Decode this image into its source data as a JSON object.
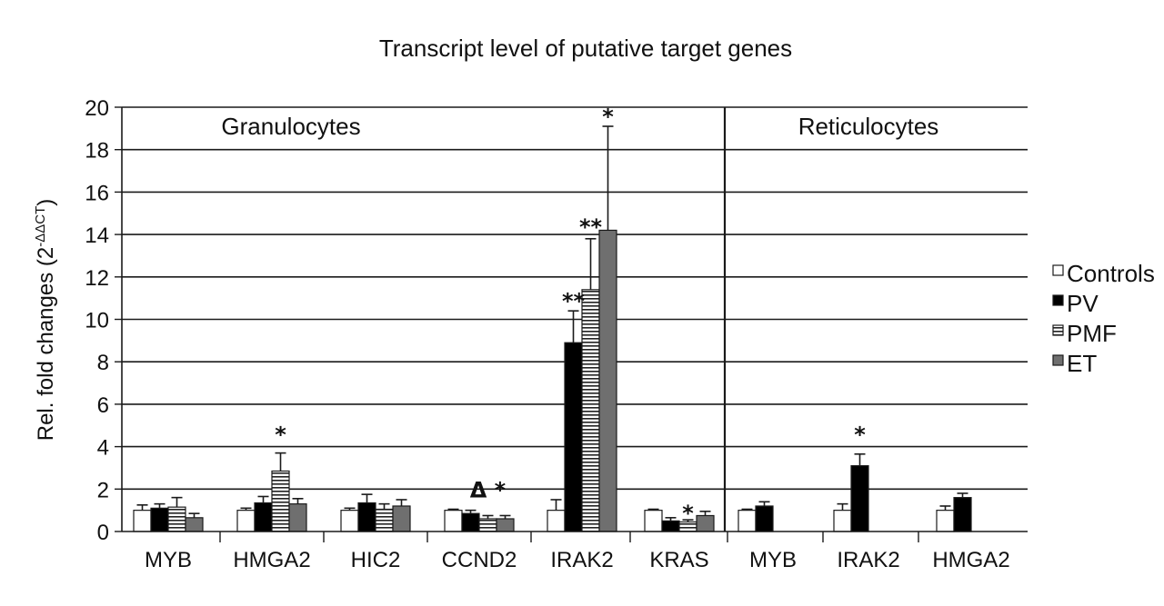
{
  "chart_data": {
    "type": "bar",
    "title": "Transcript level of putative target genes",
    "ylabel": "Rel. fold changes (2",
    "ylabel_sup": "-ΔΔCT",
    "ylabel_close": ")",
    "ylim": [
      0,
      20
    ],
    "yticks": [
      0,
      2,
      4,
      6,
      8,
      10,
      12,
      14,
      16,
      18,
      20
    ],
    "grid": true,
    "legend_position": "right",
    "panels": [
      "Granulocytes",
      "Reticulocytes"
    ],
    "categories": [
      "MYB",
      "HMGA2",
      "HIC2",
      "CCND2",
      "IRAK2",
      "KRAS",
      "MYB",
      "IRAK2",
      "HMGA2"
    ],
    "category_panel": [
      0,
      0,
      0,
      0,
      0,
      0,
      1,
      1,
      1
    ],
    "series": [
      {
        "name": "Controls",
        "fill": "#ffffff",
        "pattern": "solid",
        "values": [
          1.0,
          1.0,
          1.0,
          1.0,
          1.0,
          1.0,
          1.0,
          1.0,
          1.0
        ],
        "errors": [
          0.25,
          0.1,
          0.1,
          0.05,
          0.5,
          0.05,
          0.05,
          0.3,
          0.2
        ]
      },
      {
        "name": "PV",
        "fill": "#000000",
        "pattern": "solid",
        "values": [
          1.1,
          1.35,
          1.35,
          0.85,
          8.9,
          0.5,
          1.2,
          3.1,
          1.6
        ],
        "errors": [
          0.2,
          0.3,
          0.4,
          0.15,
          1.5,
          0.15,
          0.2,
          0.55,
          0.2
        ]
      },
      {
        "name": "PMF",
        "fill": "#ffffff",
        "pattern": "hlines",
        "values": [
          1.15,
          2.85,
          1.05,
          0.6,
          11.4,
          0.45,
          null,
          null,
          null
        ],
        "errors": [
          0.45,
          0.85,
          0.25,
          0.15,
          2.4,
          0.1,
          null,
          null,
          null
        ]
      },
      {
        "name": "ET",
        "fill": "#6f6f6f",
        "pattern": "solid",
        "values": [
          0.65,
          1.3,
          1.2,
          0.6,
          14.2,
          0.75,
          null,
          null,
          null
        ],
        "errors": [
          0.2,
          0.25,
          0.3,
          0.15,
          4.9,
          0.2,
          null,
          null,
          null
        ]
      }
    ],
    "annotations": [
      {
        "text": "*",
        "category_index": 1,
        "series_index": 2,
        "y": 4.9
      },
      {
        "text": "Δ *",
        "category_index": 3,
        "series_index": 2,
        "y": 2.3
      },
      {
        "text": "**",
        "category_index": 4,
        "series_index": 1,
        "y": 11.2
      },
      {
        "text": "**",
        "category_index": 4,
        "series_index": 2,
        "y": 14.7
      },
      {
        "text": "*",
        "category_index": 4,
        "series_index": 3,
        "y": 19.9
      },
      {
        "text": "*",
        "category_index": 5,
        "series_index": 2,
        "y": 1.2
      },
      {
        "text": "*",
        "category_index": 7,
        "series_index": 1,
        "y": 4.9
      }
    ]
  }
}
